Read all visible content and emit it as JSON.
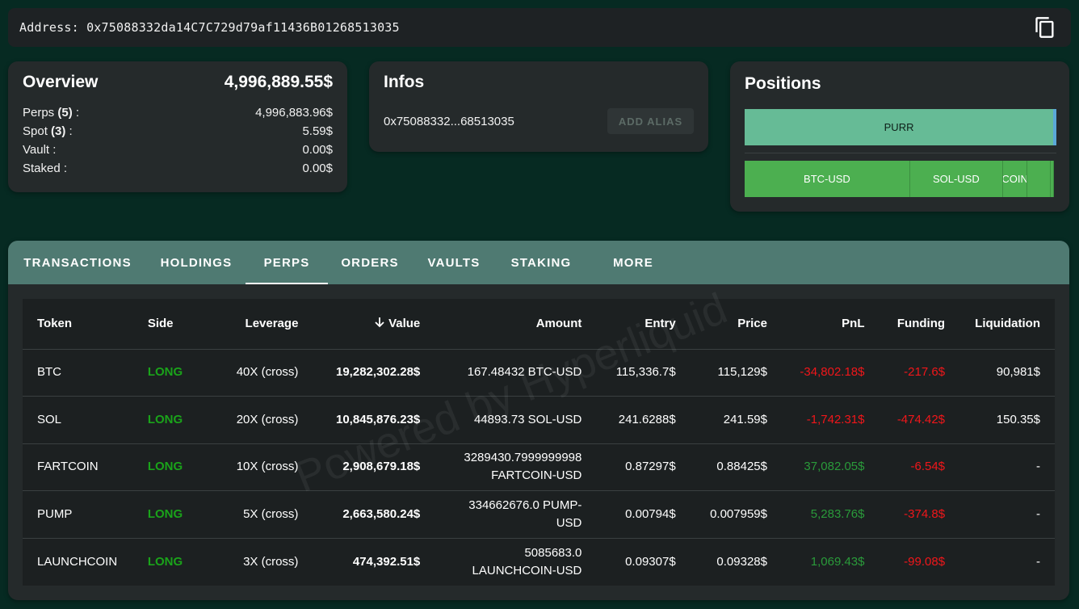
{
  "address_bar": {
    "text": "Address: 0x75088332da14C7C729d79af11436B01268513035",
    "copy_icon": "copy-icon"
  },
  "overview": {
    "title": "Overview",
    "total": "4,996,889.55$",
    "rows": [
      {
        "label": "Perps ",
        "count": "(5)",
        "suffix": " :",
        "value": "4,996,883.96$"
      },
      {
        "label": "Spot ",
        "count": "(3)",
        "suffix": " :",
        "value": "5.59$"
      },
      {
        "label": "Vault :",
        "count": "",
        "suffix": "",
        "value": "0.00$"
      },
      {
        "label": "Staked :",
        "count": "",
        "suffix": "",
        "value": "0.00$"
      }
    ]
  },
  "infos": {
    "title": "Infos",
    "short_address": "0x75088332...68513035",
    "add_alias_label": "ADD ALIAS"
  },
  "positions": {
    "title": "Positions",
    "spot_segments": [
      {
        "label": "PURR",
        "share": 0.99
      },
      {
        "label": "",
        "share": 0.01
      }
    ],
    "perp_segments": [
      {
        "label": "BTC-USD",
        "share": 0.535
      },
      {
        "label": "SOL-USD",
        "share": 0.3
      },
      {
        "label": "COIN",
        "share": 0.08
      },
      {
        "label": "",
        "share": 0.074
      },
      {
        "label": "",
        "share": 0.011
      }
    ],
    "colors": {
      "spot": "#66bb96",
      "perp": "#4caf50"
    }
  },
  "tabs": [
    {
      "label": "TRANSACTIONS",
      "active": false
    },
    {
      "label": "HOLDINGS",
      "active": false
    },
    {
      "label": "PERPS",
      "active": true
    },
    {
      "label": "ORDERS",
      "active": false
    },
    {
      "label": "VAULTS",
      "active": false
    },
    {
      "label": "STAKING",
      "active": false
    },
    {
      "label": "MORE",
      "active": false
    }
  ],
  "table": {
    "headers": {
      "token": "Token",
      "side": "Side",
      "leverage": "Leverage",
      "value": "Value",
      "amount": "Amount",
      "entry": "Entry",
      "price": "Price",
      "pnl": "PnL",
      "funding": "Funding",
      "liquidation": "Liquidation"
    },
    "rows": [
      {
        "token": "BTC",
        "side": "LONG",
        "leverage": "40X (cross)",
        "value": "19,282,302.28$",
        "amount_1": "167.48432 BTC-USD",
        "amount_2": "",
        "entry": "115,336.7$",
        "price": "115,129$",
        "pnl": "-34,802.18$",
        "pnl_sign": "neg",
        "funding": "-217.6$",
        "liquidation": "90,981$"
      },
      {
        "token": "SOL",
        "side": "LONG",
        "leverage": "20X (cross)",
        "value": "10,845,876.23$",
        "amount_1": "44893.73 SOL-USD",
        "amount_2": "",
        "entry": "241.6288$",
        "price": "241.59$",
        "pnl": "-1,742.31$",
        "pnl_sign": "neg",
        "funding": "-474.42$",
        "liquidation": "150.35$"
      },
      {
        "token": "FARTCOIN",
        "side": "LONG",
        "leverage": "10X (cross)",
        "value": "2,908,679.18$",
        "amount_1": "3289430.7999999998",
        "amount_2": "FARTCOIN-USD",
        "entry": "0.87297$",
        "price": "0.88425$",
        "pnl": "37,082.05$",
        "pnl_sign": "pos",
        "funding": "-6.54$",
        "liquidation": "-"
      },
      {
        "token": "PUMP",
        "side": "LONG",
        "leverage": "5X (cross)",
        "value": "2,663,580.24$",
        "amount_1": "334662676.0 PUMP-",
        "amount_2": "USD",
        "entry": "0.00794$",
        "price": "0.007959$",
        "pnl": "5,283.76$",
        "pnl_sign": "pos",
        "funding": "-374.8$",
        "liquidation": "-"
      },
      {
        "token": "LAUNCHCOIN",
        "side": "LONG",
        "leverage": "3X (cross)",
        "value": "474,392.51$",
        "amount_1": "5085683.0",
        "amount_2": "LAUNCHCOIN-USD",
        "entry": "0.09307$",
        "price": "0.09328$",
        "pnl": "1,069.43$",
        "pnl_sign": "pos",
        "funding": "-99.08$",
        "liquidation": "-"
      }
    ]
  },
  "watermark": "Powered by Hyperliquid",
  "colors": {
    "background": "#062a22",
    "card": "#252a2b",
    "tabs_bar": "#4f7a72",
    "long": "#1aa31a",
    "negative": "#f0161a",
    "positive": "#2a9a3a"
  }
}
